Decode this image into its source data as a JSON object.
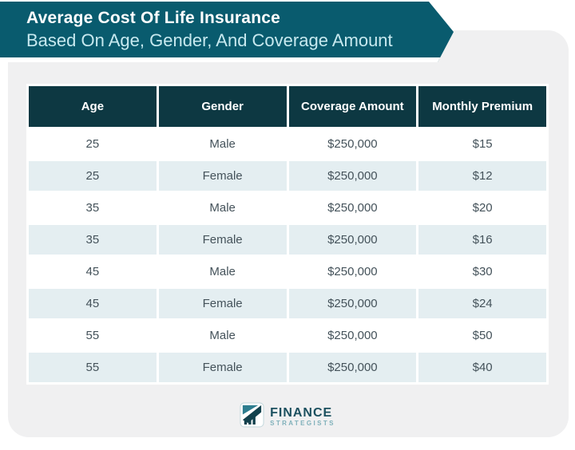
{
  "page": {
    "title": "Average Cost Of Life Insurance",
    "subtitle": "Based On Age, Gender, And Coverage Amount"
  },
  "table": {
    "headers": [
      "Age",
      "Gender",
      "Coverage Amount",
      "Monthly Premium"
    ],
    "rows": [
      [
        "25",
        "Male",
        "$250,000",
        "$15"
      ],
      [
        "25",
        "Female",
        "$250,000",
        "$12"
      ],
      [
        "35",
        "Male",
        "$250,000",
        "$20"
      ],
      [
        "35",
        "Female",
        "$250,000",
        "$16"
      ],
      [
        "45",
        "Male",
        "$250,000",
        "$30"
      ],
      [
        "45",
        "Female",
        "$250,000",
        "$24"
      ],
      [
        "55",
        "Male",
        "$250,000",
        "$50"
      ],
      [
        "55",
        "Female",
        "$250,000",
        "$40"
      ]
    ]
  },
  "chart_data": {
    "type": "table",
    "title": "Average Cost Of Life Insurance Based On Age, Gender, And Coverage Amount",
    "columns": [
      "Age",
      "Gender",
      "Coverage Amount",
      "Monthly Premium"
    ],
    "rows": [
      {
        "age": 25,
        "gender": "Male",
        "coverage_amount": "$250,000",
        "monthly_premium": "$15"
      },
      {
        "age": 25,
        "gender": "Female",
        "coverage_amount": "$250,000",
        "monthly_premium": "$12"
      },
      {
        "age": 35,
        "gender": "Male",
        "coverage_amount": "$250,000",
        "monthly_premium": "$20"
      },
      {
        "age": 35,
        "gender": "Female",
        "coverage_amount": "$250,000",
        "monthly_premium": "$16"
      },
      {
        "age": 45,
        "gender": "Male",
        "coverage_amount": "$250,000",
        "monthly_premium": "$30"
      },
      {
        "age": 45,
        "gender": "Female",
        "coverage_amount": "$250,000",
        "monthly_premium": "$24"
      },
      {
        "age": 55,
        "gender": "Male",
        "coverage_amount": "$250,000",
        "monthly_premium": "$50"
      },
      {
        "age": 55,
        "gender": "Female",
        "coverage_amount": "$250,000",
        "monthly_premium": "$40"
      }
    ],
    "layout_hints": {
      "alternating_row_shading": true,
      "header_style": "dark-teal"
    }
  },
  "logo": {
    "name": "FINANCE",
    "sub": "STRATEGISTS",
    "icon": "trend-bar-chart-icon"
  },
  "colors": {
    "banner_bg": "#095b6e",
    "banner_title": "#ffffff",
    "banner_subtitle": "#c7e9ef",
    "card_bg": "#f0f0f1",
    "table_header_bg": "#0d3842",
    "table_header_text": "#ffffff",
    "table_alt_row_bg": "#e4eef1",
    "table_body_text": "#44525a",
    "logo_primary": "#1c505f",
    "logo_secondary": "#7fb0ba"
  }
}
